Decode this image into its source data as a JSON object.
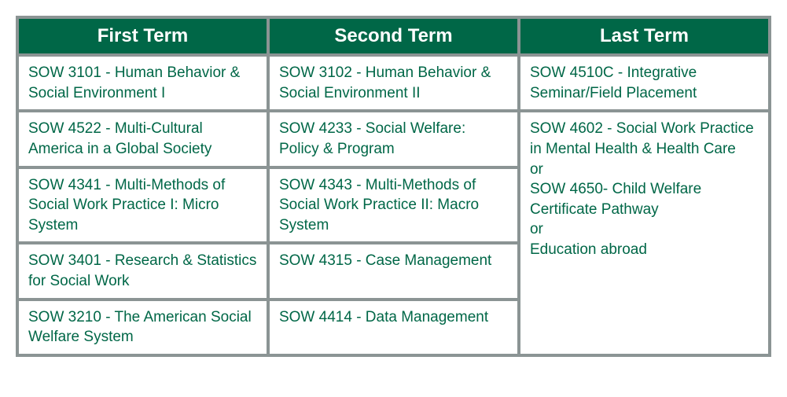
{
  "table": {
    "border_color": "#8b9494",
    "header_bg": "#006747",
    "header_text_color": "#ffffff",
    "cell_bg": "#ffffff",
    "cell_text_color": "#006747",
    "header_fontsize": 24,
    "cell_fontsize": 19,
    "columns": [
      "First Term",
      "Second Term",
      "Last Term"
    ],
    "col1": [
      "SOW 3101 - Human Behavior & Social Environment I",
      "SOW 4522 - Multi-Cultural America in a Global Society",
      "SOW 4341 - Multi-Methods of Social Work Practice I: Micro System",
      "SOW 3401 - Research & Statistics for Social Work",
      "SOW 3210 - The American Social Welfare System"
    ],
    "col2": [
      "SOW 3102 - Human Behavior & Social Environment II",
      "SOW 4233 - Social Welfare: Policy & Program",
      "SOW 4343 - Multi-Methods of Social Work Practice II: Macro System",
      "SOW 4315 - Case Management",
      "SOW 4414 - Data Management"
    ],
    "col3": [
      "SOW 4510C - Integrative Seminar/Field Placement",
      "SOW 4602 - Social Work Practice in Mental Health & Health Care\nor\nSOW 4650- Child Welfare Certificate Pathway\nor\nEducation abroad"
    ]
  }
}
